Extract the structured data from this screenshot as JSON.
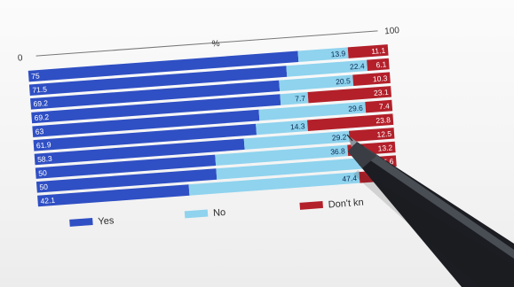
{
  "scene": {
    "description_labels": {
      "axis_start": "0",
      "axis_unit": "%",
      "axis_end": "100"
    }
  },
  "chart_data": {
    "type": "bar",
    "orientation": "horizontal-stacked",
    "title": "",
    "xlabel": "%",
    "ylabel": "",
    "xlim": [
      0,
      100
    ],
    "grid": false,
    "legend_position": "bottom",
    "colors": {
      "Yes": "#2f4fc4",
      "No": "#8fd3ee",
      "Dont": "#b3202a"
    },
    "series": [
      {
        "name": "Yes",
        "values": [
          75,
          71.5,
          69.2,
          69.2,
          63,
          61.9,
          58.3,
          50,
          50,
          42.1
        ]
      },
      {
        "name": "No",
        "values": [
          13.9,
          22.4,
          20.5,
          7.7,
          29.6,
          14.3,
          29.2,
          36.8,
          44.4,
          47.4
        ]
      },
      {
        "name": "Don't know",
        "values": [
          11.1,
          6.1,
          10.3,
          23.1,
          7.4,
          23.8,
          12.5,
          13.2,
          5.6,
          10.5
        ]
      }
    ],
    "legend": [
      {
        "label": "Yes",
        "color": "#2f4fc4"
      },
      {
        "label": "No",
        "color": "#8fd3ee"
      },
      {
        "label": "Don't kn",
        "color": "#b3202a"
      }
    ]
  }
}
